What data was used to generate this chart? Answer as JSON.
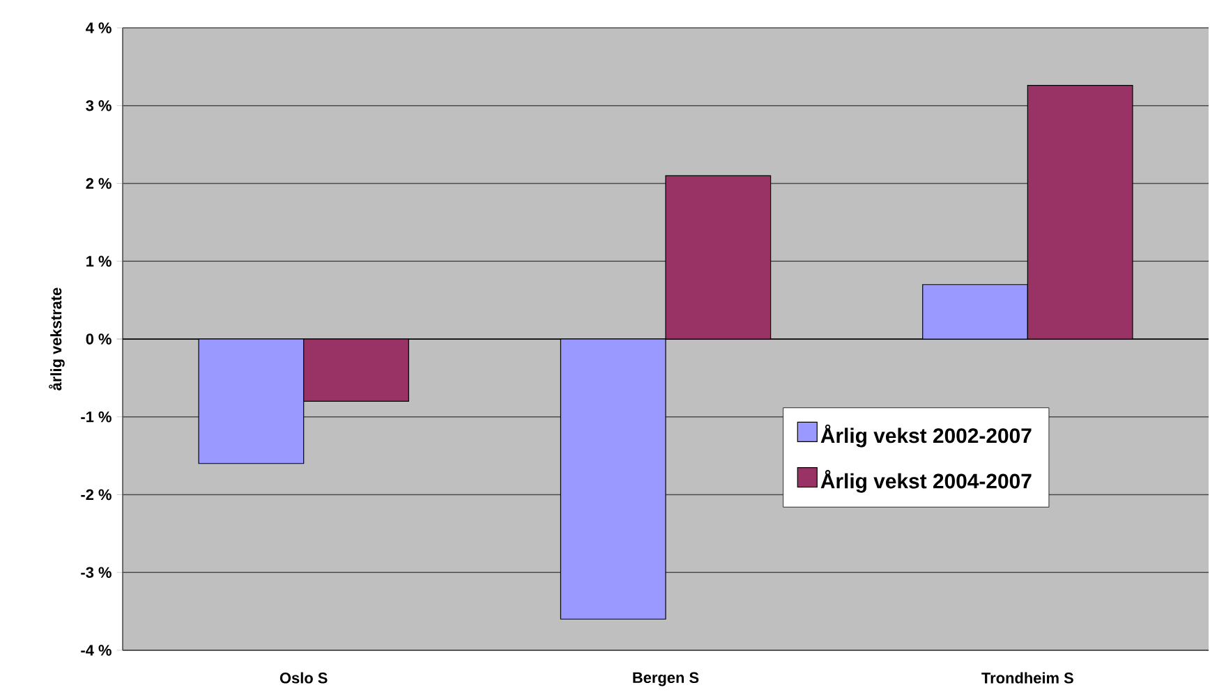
{
  "chart_data": {
    "type": "bar",
    "ylabel": "årlig vekstrate",
    "categories": [
      "Oslo S",
      "Bergen S",
      "Trondheim S"
    ],
    "series": [
      {
        "name": "Årlig vekst 2002-2007",
        "color": "#9999ff",
        "values": [
          -1.6,
          -3.6,
          0.7
        ]
      },
      {
        "name": "Årlig vekst 2004-2007",
        "color": "#993366",
        "values": [
          -0.8,
          2.1,
          3.26
        ]
      }
    ],
    "ylim": [
      -4,
      4
    ],
    "yticks": [
      {
        "value": -4,
        "label": "-4 %"
      },
      {
        "value": -3,
        "label": "-3 %"
      },
      {
        "value": -2,
        "label": "-2 %"
      },
      {
        "value": -1,
        "label": "-1 %"
      },
      {
        "value": 0,
        "label": "0 %"
      },
      {
        "value": 1,
        "label": "1 %"
      },
      {
        "value": 2,
        "label": "2 %"
      },
      {
        "value": 3,
        "label": "3 %"
      },
      {
        "value": 4,
        "label": "4 %"
      }
    ],
    "grid": "y",
    "legend": "bottom right"
  }
}
